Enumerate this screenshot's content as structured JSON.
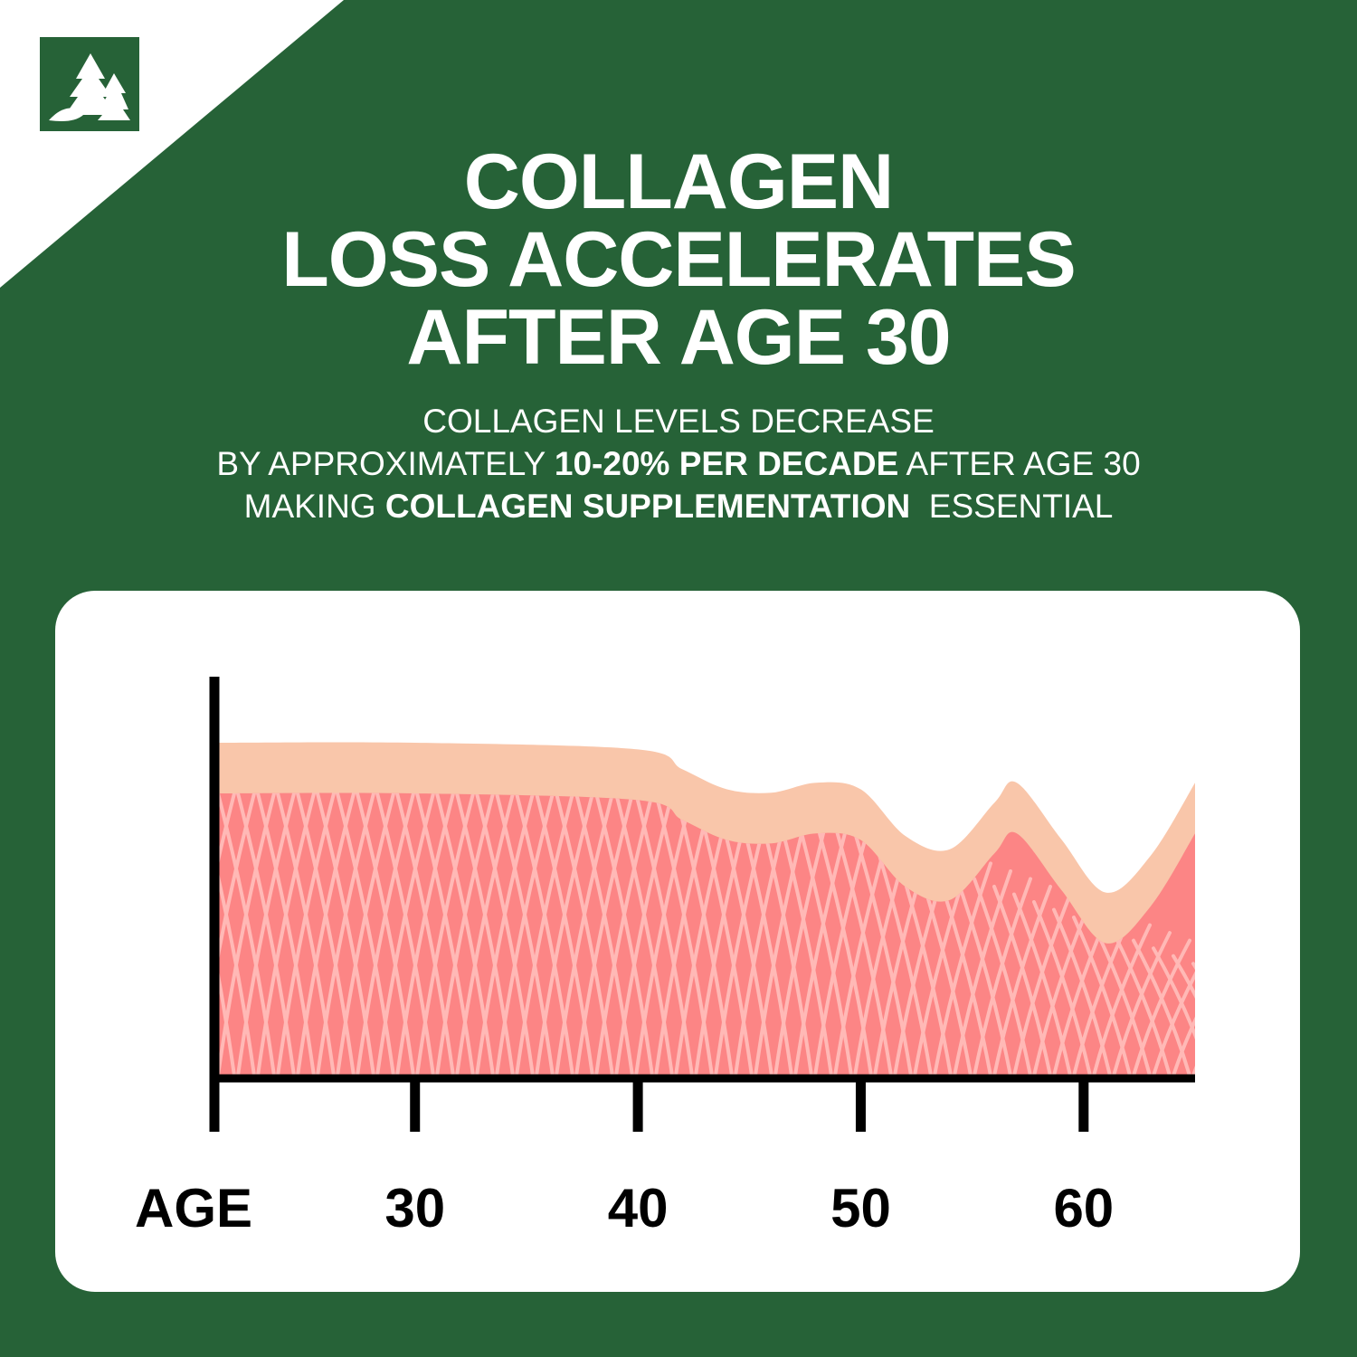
{
  "header": {
    "logo_icon": "pine-trees-logo-icon",
    "title_lines": [
      "COLLAGEN",
      "LOSS ACCELERATES",
      "AFTER AGE 30"
    ],
    "subtitle": {
      "line1": "COLLAGEN LEVELS DECREASE",
      "line2_pre": "BY APPROXIMATELY ",
      "line2_bold": "10-20% PER DECADE",
      "line2_post": " AFTER AGE 30",
      "line3_pre": "MAKING ",
      "line3_bold": "COLLAGEN SUPPLEMENTATION",
      "line3_post": "  ESSENTIAL"
    }
  },
  "colors": {
    "background": "#266237",
    "card": "#ffffff",
    "dermis": "#fc8585",
    "fibers": "#ffb9b6",
    "epidermis": "#f9c6aa",
    "axis": "#000000"
  },
  "chart_data": {
    "type": "area",
    "title": "",
    "xlabel": "AGE",
    "ylabel": "",
    "x_ticks": [
      30,
      40,
      50,
      60
    ],
    "x_tick_labels": [
      "30",
      "40",
      "50",
      "60"
    ],
    "xlim": [
      21,
      65
    ],
    "ylim": [
      0,
      1
    ],
    "grid": false,
    "legend": "none",
    "series": [
      {
        "x": [
          21,
          30,
          40,
          42,
          44,
          46,
          48,
          50,
          52,
          54,
          56,
          57,
          59,
          61,
          63,
          65
        ],
        "y": [
          1.0,
          1.0,
          0.98,
          0.92,
          0.86,
          0.85,
          0.88,
          0.86,
          0.72,
          0.68,
          0.82,
          0.88,
          0.71,
          0.55,
          0.66,
          0.88
        ]
      }
    ]
  }
}
